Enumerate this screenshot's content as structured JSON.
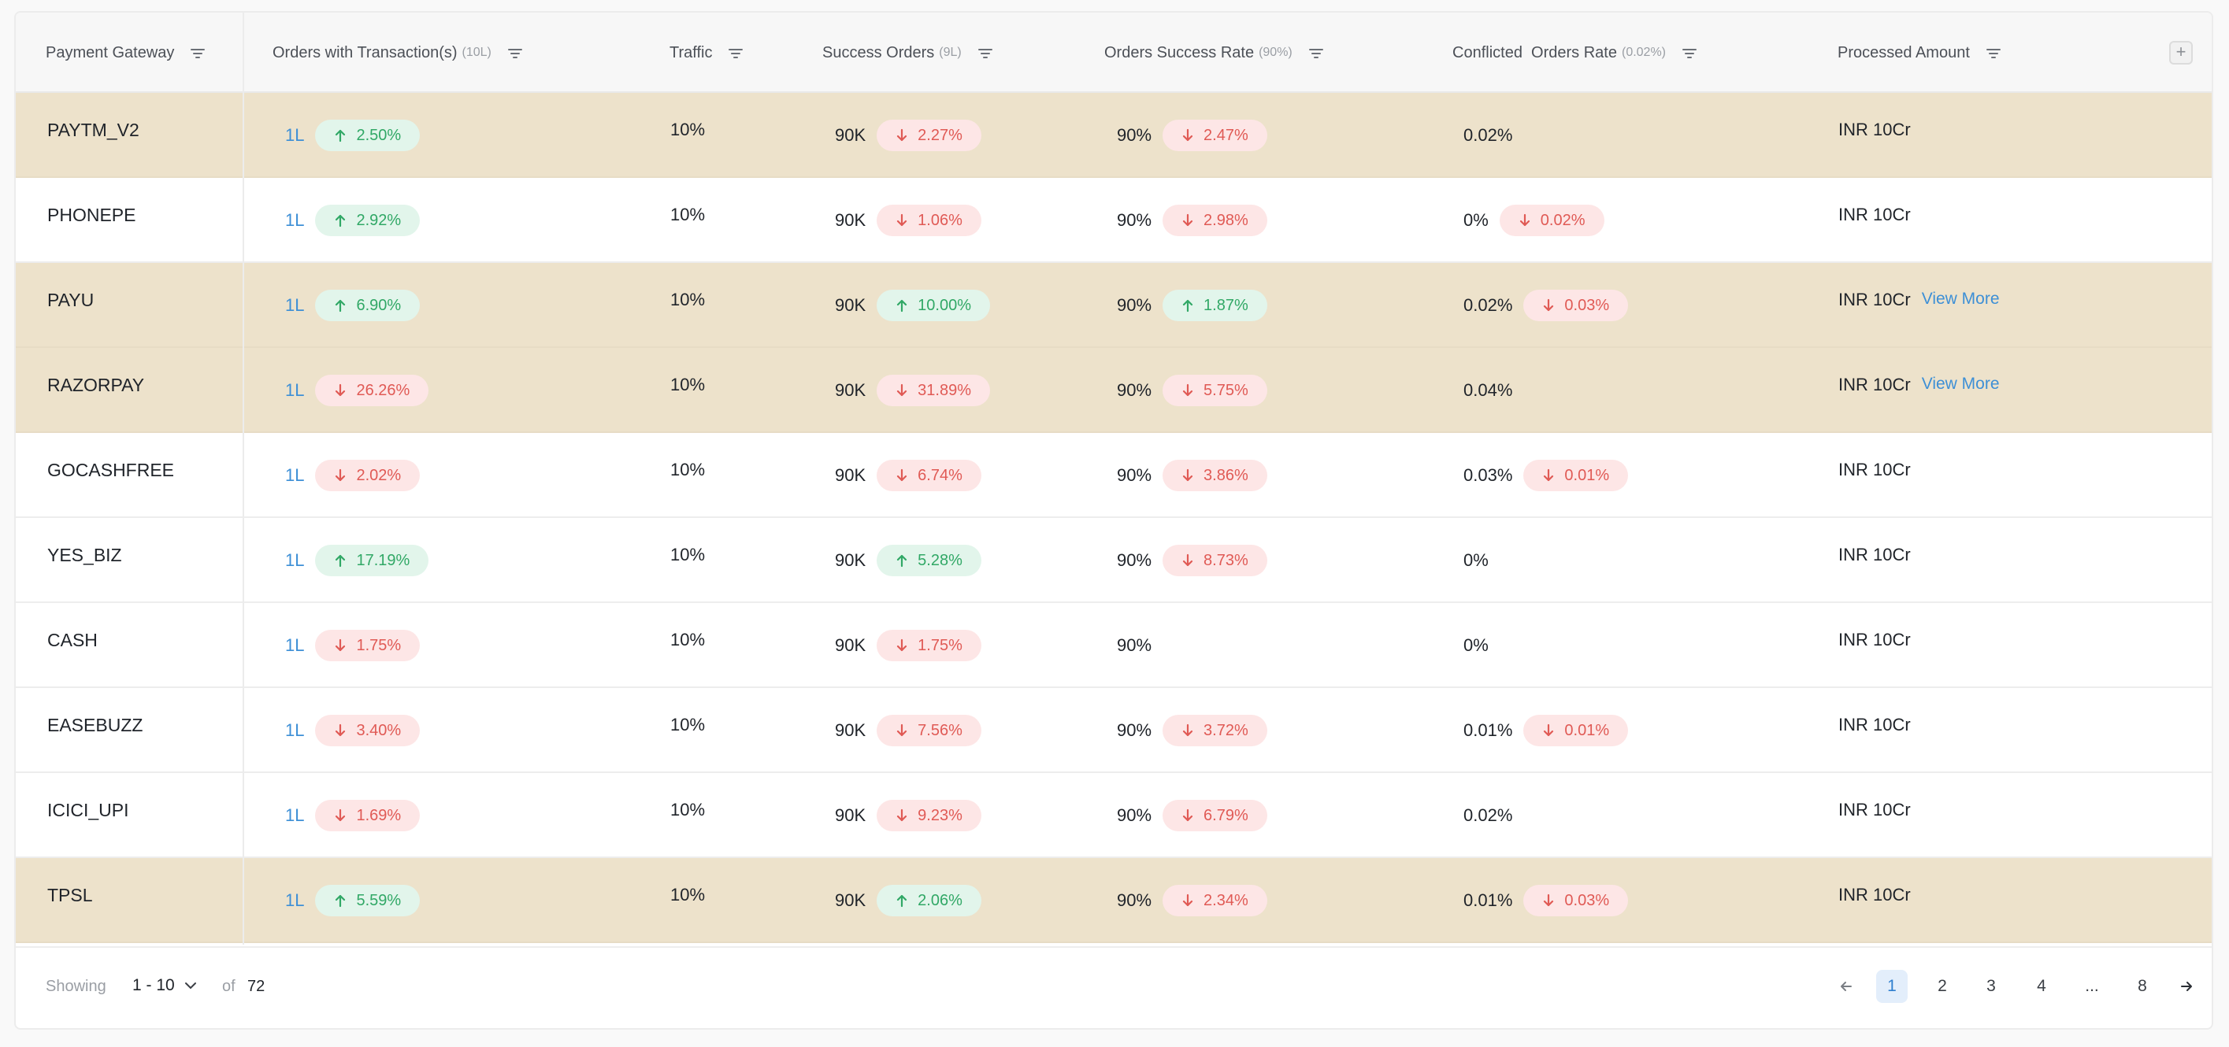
{
  "header": {
    "columns": [
      {
        "label": "Payment Gateway",
        "sub": ""
      },
      {
        "label": "Orders with Transaction(s)",
        "sub": "(10L)"
      },
      {
        "label": "Traffic",
        "sub": ""
      },
      {
        "label": "Success Orders",
        "sub": "(9L)"
      },
      {
        "label": "Orders Success Rate",
        "sub": "(90%)"
      },
      {
        "label": "Conflicted  Orders Rate",
        "sub": "(0.02%)"
      },
      {
        "label": "Processed Amount",
        "sub": ""
      }
    ],
    "add_column": "+"
  },
  "rows": [
    {
      "gateway": "PAYTM_V2",
      "orders": "1L",
      "orders_delta": {
        "dir": "up",
        "text": "2.50%"
      },
      "traffic": "10%",
      "success": "90K",
      "success_delta": {
        "dir": "down",
        "text": "2.27%"
      },
      "rate": "90%",
      "rate_delta": {
        "dir": "down",
        "text": "2.47%"
      },
      "conflict": "0.02%",
      "conflict_delta": null,
      "amount": "INR 10Cr",
      "view_more": "",
      "highlight": true
    },
    {
      "gateway": "PHONEPE",
      "orders": "1L",
      "orders_delta": {
        "dir": "up",
        "text": "2.92%"
      },
      "traffic": "10%",
      "success": "90K",
      "success_delta": {
        "dir": "down",
        "text": "1.06%"
      },
      "rate": "90%",
      "rate_delta": {
        "dir": "down",
        "text": "2.98%"
      },
      "conflict": "0%",
      "conflict_delta": {
        "dir": "down",
        "text": "0.02%"
      },
      "amount": "INR 10Cr",
      "view_more": "",
      "highlight": false
    },
    {
      "gateway": "PAYU",
      "orders": "1L",
      "orders_delta": {
        "dir": "up",
        "text": "6.90%"
      },
      "traffic": "10%",
      "success": "90K",
      "success_delta": {
        "dir": "up",
        "text": "10.00%"
      },
      "rate": "90%",
      "rate_delta": {
        "dir": "up",
        "text": "1.87%"
      },
      "conflict": "0.02%",
      "conflict_delta": {
        "dir": "down",
        "text": "0.03%"
      },
      "amount": "INR 10Cr",
      "view_more": "View More",
      "highlight": true
    },
    {
      "gateway": "RAZORPAY",
      "orders": "1L",
      "orders_delta": {
        "dir": "down",
        "text": "26.26%"
      },
      "traffic": "10%",
      "success": "90K",
      "success_delta": {
        "dir": "down",
        "text": "31.89%"
      },
      "rate": "90%",
      "rate_delta": {
        "dir": "down",
        "text": "5.75%"
      },
      "conflict": "0.04%",
      "conflict_delta": null,
      "amount": "INR 10Cr",
      "view_more": "View More",
      "highlight": true
    },
    {
      "gateway": "GOCASHFREE",
      "orders": "1L",
      "orders_delta": {
        "dir": "down",
        "text": "2.02%"
      },
      "traffic": "10%",
      "success": "90K",
      "success_delta": {
        "dir": "down",
        "text": "6.74%"
      },
      "rate": "90%",
      "rate_delta": {
        "dir": "down",
        "text": "3.86%"
      },
      "conflict": "0.03%",
      "conflict_delta": {
        "dir": "down",
        "text": "0.01%"
      },
      "amount": "INR 10Cr",
      "view_more": "",
      "highlight": false
    },
    {
      "gateway": "YES_BIZ",
      "orders": "1L",
      "orders_delta": {
        "dir": "up",
        "text": "17.19%"
      },
      "traffic": "10%",
      "success": "90K",
      "success_delta": {
        "dir": "up",
        "text": "5.28%"
      },
      "rate": "90%",
      "rate_delta": {
        "dir": "down",
        "text": "8.73%"
      },
      "conflict": "0%",
      "conflict_delta": null,
      "amount": "INR 10Cr",
      "view_more": "",
      "highlight": false
    },
    {
      "gateway": "CASH",
      "orders": "1L",
      "orders_delta": {
        "dir": "down",
        "text": "1.75%"
      },
      "traffic": "10%",
      "success": "90K",
      "success_delta": {
        "dir": "down",
        "text": "1.75%"
      },
      "rate": "90%",
      "rate_delta": null,
      "conflict": "0%",
      "conflict_delta": null,
      "amount": "INR 10Cr",
      "view_more": "",
      "highlight": false
    },
    {
      "gateway": "EASEBUZZ",
      "orders": "1L",
      "orders_delta": {
        "dir": "down",
        "text": "3.40%"
      },
      "traffic": "10%",
      "success": "90K",
      "success_delta": {
        "dir": "down",
        "text": "7.56%"
      },
      "rate": "90%",
      "rate_delta": {
        "dir": "down",
        "text": "3.72%"
      },
      "conflict": "0.01%",
      "conflict_delta": {
        "dir": "down",
        "text": "0.01%"
      },
      "amount": "INR 10Cr",
      "view_more": "",
      "highlight": false
    },
    {
      "gateway": "ICICI_UPI",
      "orders": "1L",
      "orders_delta": {
        "dir": "down",
        "text": "1.69%"
      },
      "traffic": "10%",
      "success": "90K",
      "success_delta": {
        "dir": "down",
        "text": "9.23%"
      },
      "rate": "90%",
      "rate_delta": {
        "dir": "down",
        "text": "6.79%"
      },
      "conflict": "0.02%",
      "conflict_delta": null,
      "amount": "INR 10Cr",
      "view_more": "",
      "highlight": false
    },
    {
      "gateway": "TPSL",
      "orders": "1L",
      "orders_delta": {
        "dir": "up",
        "text": "5.59%"
      },
      "traffic": "10%",
      "success": "90K",
      "success_delta": {
        "dir": "up",
        "text": "2.06%"
      },
      "rate": "90%",
      "rate_delta": {
        "dir": "down",
        "text": "2.34%"
      },
      "conflict": "0.01%",
      "conflict_delta": {
        "dir": "down",
        "text": "0.03%"
      },
      "amount": "INR 10Cr",
      "view_more": "",
      "highlight": true
    }
  ],
  "footer": {
    "showing_label": "Showing",
    "range": "1 - 10",
    "of_label": "of",
    "total": "72",
    "pages": [
      "1",
      "2",
      "3",
      "4",
      "...",
      "8"
    ],
    "active_page": "1"
  },
  "colors": {
    "highlight_row": "#ede2cb",
    "up_text": "#31a866",
    "up_bg": "#e2f5eb",
    "down_text": "#e05a55",
    "down_bg": "#fde6e6",
    "link": "#3d8fd6"
  }
}
